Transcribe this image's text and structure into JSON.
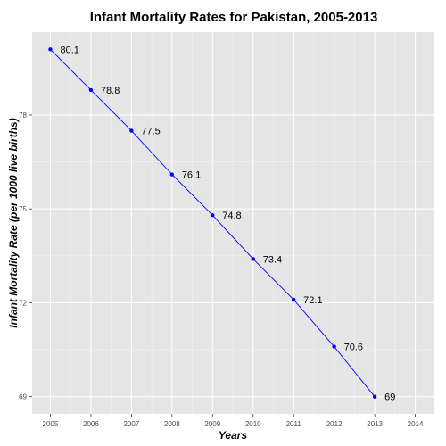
{
  "chart_data": {
    "type": "line",
    "title": "Infant Mortality Rates for Pakistan, 2005-2013",
    "xlabel": "Years",
    "ylabel": "Infant Mortality Rate (per 1000 live births)",
    "x": [
      2005,
      2006,
      2007,
      2008,
      2009,
      2010,
      2011,
      2012,
      2013
    ],
    "y": [
      80.1,
      78.8,
      77.5,
      76.1,
      74.8,
      73.4,
      72.1,
      70.6,
      69
    ],
    "data_labels": [
      "80.1",
      "78.8",
      "77.5",
      "76.1",
      "74.8",
      "73.4",
      "72.1",
      "70.6",
      "69"
    ],
    "xticks": [
      2005,
      2006,
      2007,
      2008,
      2009,
      2010,
      2011,
      2012,
      2013,
      2014
    ],
    "xtick_labels": [
      "2005",
      "2006",
      "2007",
      "2008",
      "2009",
      "2010",
      "2011",
      "2012",
      "2013",
      "2014"
    ],
    "yticks": [
      69,
      72,
      75,
      78
    ],
    "ytick_labels": [
      "69",
      "72",
      "75",
      "78"
    ],
    "xlim": [
      2004.55,
      2014.45
    ],
    "ylim": [
      68.45,
      80.65
    ],
    "grid": true,
    "colors": {
      "panel_background": "#e5e5e5",
      "grid_major": "#ffffff",
      "grid_minor": "#f2f2f2",
      "series": "#0000ff"
    }
  }
}
